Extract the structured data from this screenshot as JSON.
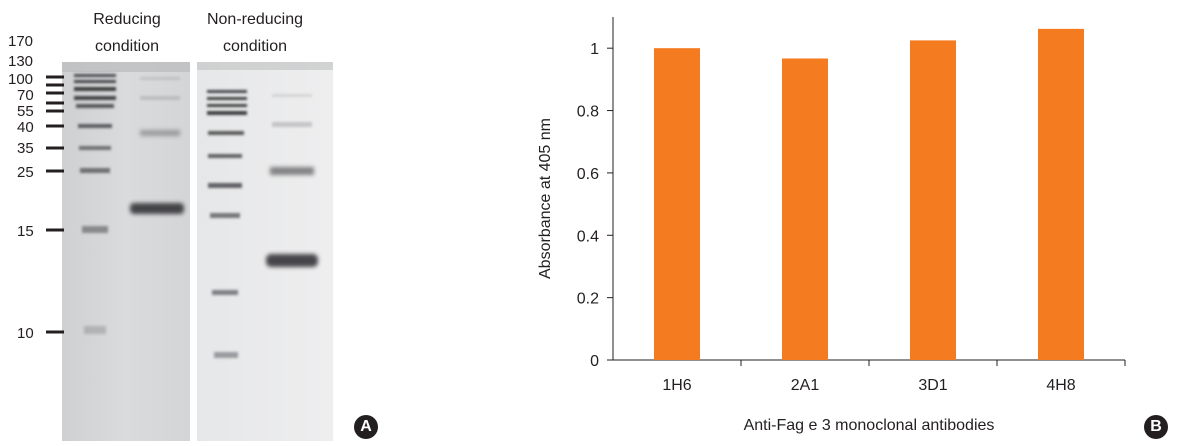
{
  "panel_a": {
    "label": "A",
    "lane_headers": [
      {
        "line1": "Reducing",
        "line2": "condition"
      },
      {
        "line1": "Non-reducing",
        "line2": "condition"
      }
    ],
    "markers": [
      "170",
      "130",
      "100",
      "70",
      "55",
      "40",
      "35",
      "25",
      "15",
      "10"
    ]
  },
  "panel_b": {
    "label": "B"
  },
  "chart_data": {
    "type": "bar",
    "categories": [
      "1H6",
      "2A1",
      "3D1",
      "4H8"
    ],
    "values": [
      1.0,
      0.967,
      1.025,
      1.062
    ],
    "xlabel": "Anti-Fag e 3 monoclonal antibodies",
    "ylabel": "Absorbance at 405 nm",
    "ylim": [
      0,
      1.1
    ],
    "yticks": [
      "0",
      "0.2",
      "0.4",
      "0.6",
      "0.8",
      "1"
    ],
    "grid": false,
    "bar_color": "#f47b20"
  }
}
